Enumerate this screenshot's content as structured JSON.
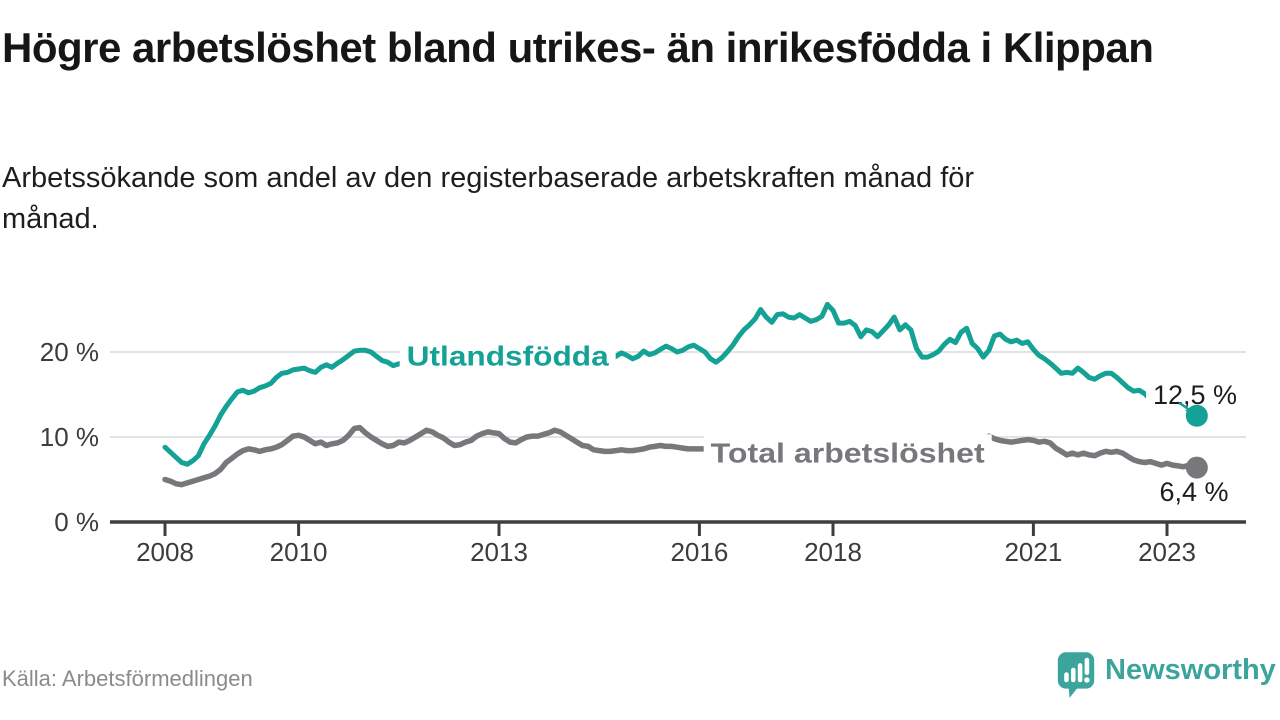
{
  "header": {
    "title": "Högre arbetslöshet bland utrikes- än inrikesfödda i Klippan",
    "subtitle": "Arbetssökande som andel av den registerbaserade arbetskraften månad för månad."
  },
  "footer": {
    "source": "Källa: Arbetsförmedlingen",
    "brand": "Newsworthy"
  },
  "colors": {
    "foreign_born_line": "#14a196",
    "total_line": "#77777c",
    "grid": "#e3e3e3",
    "axis": "#3e3e3e",
    "tick_text": "#3c3c3c",
    "value_text": "#1d1d1d",
    "brand_teal": "#3ba49c"
  },
  "chart_data": {
    "type": "line",
    "title": "Högre arbetslöshet bland utrikes- än inrikesfödda i Klippan",
    "subtitle": "Arbetssökande som andel av den registerbaserade arbetskraften månad för månad.",
    "frequency": "monthly",
    "x_start": "2008-01",
    "x_end": "2023-06",
    "xlim": [
      2008,
      2023.6
    ],
    "ylim": [
      0,
      27
    ],
    "grid": "horizontal",
    "legend_position": "inline-on-line",
    "xlabel": "",
    "ylabel": "",
    "x_ticks": [
      {
        "year": 2008,
        "label": "2008"
      },
      {
        "year": 2010,
        "label": "2010"
      },
      {
        "year": 2013,
        "label": "2013"
      },
      {
        "year": 2016,
        "label": "2016"
      },
      {
        "year": 2018,
        "label": "2018"
      },
      {
        "year": 2021,
        "label": "2021"
      },
      {
        "year": 2023,
        "label": "2023"
      }
    ],
    "y_ticks": [
      {
        "value": 0,
        "label": "0 %"
      },
      {
        "value": 10,
        "label": "10 %"
      },
      {
        "value": 20,
        "label": "20 %"
      }
    ],
    "series": [
      {
        "id": "utlandsfodda",
        "name": "Utlandsfödda",
        "color": "#14a196",
        "end_label": "12,5 %",
        "end_value": 12.5,
        "label_anchor": {
          "year": 2013.13,
          "value": 19.6
        },
        "values": [
          8.8,
          8.2,
          7.6,
          7.0,
          6.8,
          7.2,
          7.8,
          9.2,
          10.2,
          11.3,
          12.6,
          13.6,
          14.5,
          15.3,
          15.5,
          15.2,
          15.4,
          15.8,
          16.0,
          16.3,
          17.0,
          17.5,
          17.6,
          17.9,
          18.0,
          18.1,
          17.8,
          17.6,
          18.2,
          18.5,
          18.2,
          18.7,
          19.1,
          19.6,
          20.1,
          20.2,
          20.2,
          20.0,
          19.5,
          19.0,
          18.8,
          18.4,
          18.6,
          18.8,
          18.9,
          19.0,
          19.2,
          19.4,
          19.5,
          19.6,
          19.4,
          19.2,
          19.0,
          19.2,
          19.4,
          19.6,
          19.8,
          20.0,
          19.8,
          19.6,
          19.7,
          19.5,
          19.3,
          19.5,
          19.7,
          19.9,
          19.7,
          19.5,
          19.4,
          19.6,
          19.5,
          19.3,
          19.2,
          19.0,
          19.1,
          19.3,
          19.2,
          19.0,
          18.9,
          19.0,
          19.1,
          19.5,
          19.9,
          19.6,
          19.2,
          19.5,
          20.1,
          19.7,
          19.9,
          20.3,
          20.7,
          20.4,
          20.0,
          20.2,
          20.6,
          20.8,
          20.4,
          20.0,
          19.2,
          18.8,
          19.3,
          20.0,
          20.8,
          21.8,
          22.6,
          23.2,
          23.9,
          25.0,
          24.1,
          23.5,
          24.4,
          24.5,
          24.1,
          24.0,
          24.4,
          24.0,
          23.6,
          23.8,
          24.2,
          25.6,
          24.9,
          23.4,
          23.4,
          23.6,
          23.1,
          21.8,
          22.6,
          22.4,
          21.8,
          22.5,
          23.2,
          24.1,
          22.6,
          23.2,
          22.6,
          20.4,
          19.4,
          19.4,
          19.7,
          20.1,
          20.9,
          21.5,
          21.1,
          22.3,
          22.8,
          21.0,
          20.4,
          19.4,
          20.2,
          21.9,
          22.1,
          21.5,
          21.2,
          21.4,
          21.0,
          21.2,
          20.3,
          19.6,
          19.2,
          18.7,
          18.1,
          17.5,
          17.6,
          17.5,
          18.1,
          17.6,
          17.0,
          16.8,
          17.2,
          17.5,
          17.5,
          17.0,
          16.4,
          15.8,
          15.4,
          15.5,
          15.1,
          14.4,
          14.7,
          14.9,
          14.3,
          14.7,
          14.2,
          13.7,
          13.1,
          12.5
        ]
      },
      {
        "id": "total",
        "name": "Total arbetslöshet",
        "color": "#77777c",
        "end_label": "6,4 %",
        "end_value": 6.4,
        "label_anchor": {
          "year": 2018.22,
          "value": 8.2
        },
        "values": [
          5.0,
          4.8,
          4.5,
          4.4,
          4.6,
          4.8,
          5.0,
          5.2,
          5.4,
          5.7,
          6.2,
          7.0,
          7.5,
          8.0,
          8.4,
          8.6,
          8.5,
          8.3,
          8.5,
          8.6,
          8.8,
          9.1,
          9.6,
          10.1,
          10.2,
          10.0,
          9.6,
          9.2,
          9.4,
          9.0,
          9.2,
          9.3,
          9.6,
          10.2,
          11.0,
          11.1,
          10.5,
          10.0,
          9.6,
          9.2,
          8.9,
          9.0,
          9.4,
          9.3,
          9.6,
          10.0,
          10.4,
          10.8,
          10.6,
          10.2,
          9.9,
          9.4,
          9.0,
          9.1,
          9.4,
          9.6,
          10.1,
          10.4,
          10.6,
          10.5,
          10.4,
          9.8,
          9.4,
          9.3,
          9.7,
          10.0,
          10.1,
          10.1,
          10.3,
          10.5,
          10.8,
          10.6,
          10.2,
          9.8,
          9.4,
          9.0,
          8.9,
          8.5,
          8.4,
          8.3,
          8.3,
          8.4,
          8.5,
          8.4,
          8.4,
          8.5,
          8.6,
          8.8,
          8.9,
          9.0,
          8.9,
          8.9,
          8.8,
          8.7,
          8.6,
          8.6,
          8.6,
          8.6,
          8.5,
          8.4,
          8.7,
          9.0,
          9.1,
          9.0,
          8.9,
          8.8,
          8.7,
          8.8,
          8.8,
          8.7,
          8.6,
          8.5,
          8.4,
          8.5,
          8.6,
          8.5,
          8.4,
          8.3,
          8.4,
          8.5,
          8.4,
          8.3,
          8.2,
          8.1,
          8.0,
          8.1,
          8.2,
          8.3,
          8.2,
          8.1,
          8.2,
          8.3,
          8.4,
          8.5,
          8.4,
          8.5,
          8.6,
          8.7,
          8.8,
          8.7,
          8.6,
          8.7,
          8.8,
          8.9,
          9.0,
          9.1,
          9.3,
          9.6,
          10.1,
          9.8,
          9.6,
          9.5,
          9.4,
          9.5,
          9.6,
          9.7,
          9.6,
          9.4,
          9.5,
          9.3,
          8.7,
          8.3,
          7.9,
          8.1,
          7.9,
          8.1,
          7.9,
          7.8,
          8.1,
          8.3,
          8.2,
          8.3,
          8.1,
          7.7,
          7.3,
          7.1,
          7.0,
          7.1,
          6.9,
          6.7,
          6.9,
          6.7,
          6.6,
          6.5,
          6.7,
          6.4
        ]
      }
    ]
  }
}
